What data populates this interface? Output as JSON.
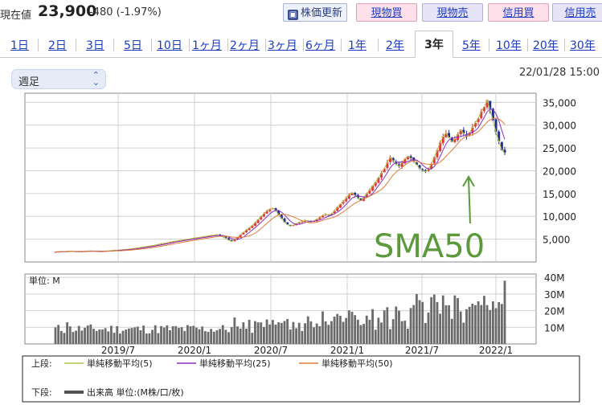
{
  "header": {
    "price_label": "現在値",
    "price_value": "23,900",
    "price_change": "-480 (-1.97%)",
    "refresh_label": "株価更新",
    "buy_label": "現物買",
    "sell_label": "現物売",
    "margin_buy_label": "信用買",
    "margin_sell_label": "信用売"
  },
  "tabs": [
    "1日",
    "2日",
    "3日",
    "5日",
    "10日",
    "1ヶ月",
    "2ヶ月",
    "3ヶ月",
    "6ヶ月",
    "1年",
    "2年",
    "3年",
    "5年",
    "10年",
    "20年",
    "30年"
  ],
  "active_tab": "3年",
  "period_select": {
    "value": "週足"
  },
  "timestamp": "22/01/28 15:00",
  "colors": {
    "up": "#e03a3a",
    "down": "#1f2f8f",
    "sma5": "#b3c34a",
    "sma25": "#8a2fc0",
    "sma50": "#e07a3a",
    "volume": "#6b6b6b",
    "annotation": "#5a9a3a"
  },
  "chart_data": {
    "type": "candlestick",
    "x_ticks": [
      "2019/7",
      "2020/1",
      "2020/7",
      "2021/1",
      "2021/7",
      "2022/1"
    ],
    "price_axis": {
      "ticks": [
        "35,000",
        "30,000",
        "25,000",
        "20,000",
        "15,000",
        "10,000",
        "5,000"
      ],
      "ylim": [
        0,
        37000
      ]
    },
    "volume_axis": {
      "ticks": [
        "40M",
        "30M",
        "20M",
        "10M"
      ],
      "ylim": [
        0,
        42
      ],
      "unit_label": "単位: M"
    },
    "price_close_weekly": [
      2200,
      2250,
      2300,
      2200,
      2350,
      2400,
      2350,
      2300,
      2250,
      2300,
      2350,
      2400,
      2450,
      2400,
      2350,
      2300,
      2350,
      2400,
      2450,
      2500,
      2550,
      2600,
      2650,
      2700,
      2750,
      2800,
      2900,
      3000,
      3100,
      3200,
      3300,
      3400,
      3500,
      3600,
      3700,
      3850,
      4000,
      4100,
      4200,
      4350,
      4500,
      4600,
      4700,
      4800,
      4900,
      5000,
      5100,
      5200,
      5300,
      5400,
      5500,
      5600,
      5700,
      5800,
      5900,
      6000,
      5800,
      5500,
      5200,
      4800,
      4500,
      4900,
      5400,
      6000,
      6500,
      7000,
      7500,
      8000,
      8600,
      9300,
      10000,
      10600,
      11200,
      11600,
      11800,
      11300,
      10400,
      9500,
      8700,
      8200,
      7900,
      8100,
      8400,
      8700,
      8900,
      9100,
      9000,
      8800,
      9000,
      9400,
      9800,
      10200,
      10400,
      10300,
      10600,
      11200,
      12000,
      12700,
      13300,
      14000,
      14700,
      15200,
      14600,
      14000,
      13400,
      14200,
      15000,
      15800,
      16700,
      17500,
      18500,
      19500,
      20500,
      21800,
      23000,
      22200,
      21500,
      21000,
      21800,
      22600,
      23200,
      22700,
      22000,
      21300,
      20500,
      20000,
      19800,
      20300,
      21500,
      23000,
      24500,
      26200,
      27500,
      28300,
      27300,
      26300,
      27000,
      28000,
      29000,
      28200,
      27500,
      28300,
      29500,
      30500,
      31500,
      33000,
      34000,
      35500,
      33500,
      31000,
      28500,
      26500,
      24500,
      23900
    ],
    "sma_series": [
      {
        "name": "単純移動平均(5)",
        "color": "#b3c34a"
      },
      {
        "name": "単純移動平均(25)",
        "color": "#8a2fc0"
      },
      {
        "name": "単純移動平均(50)",
        "color": "#e07a3a"
      }
    ],
    "volume_series_name": "出来高 単位:(M株/口/枚)",
    "annotation": "SMA50"
  },
  "legend": {
    "upper_label": "上段:",
    "lower_label": "下段:"
  }
}
